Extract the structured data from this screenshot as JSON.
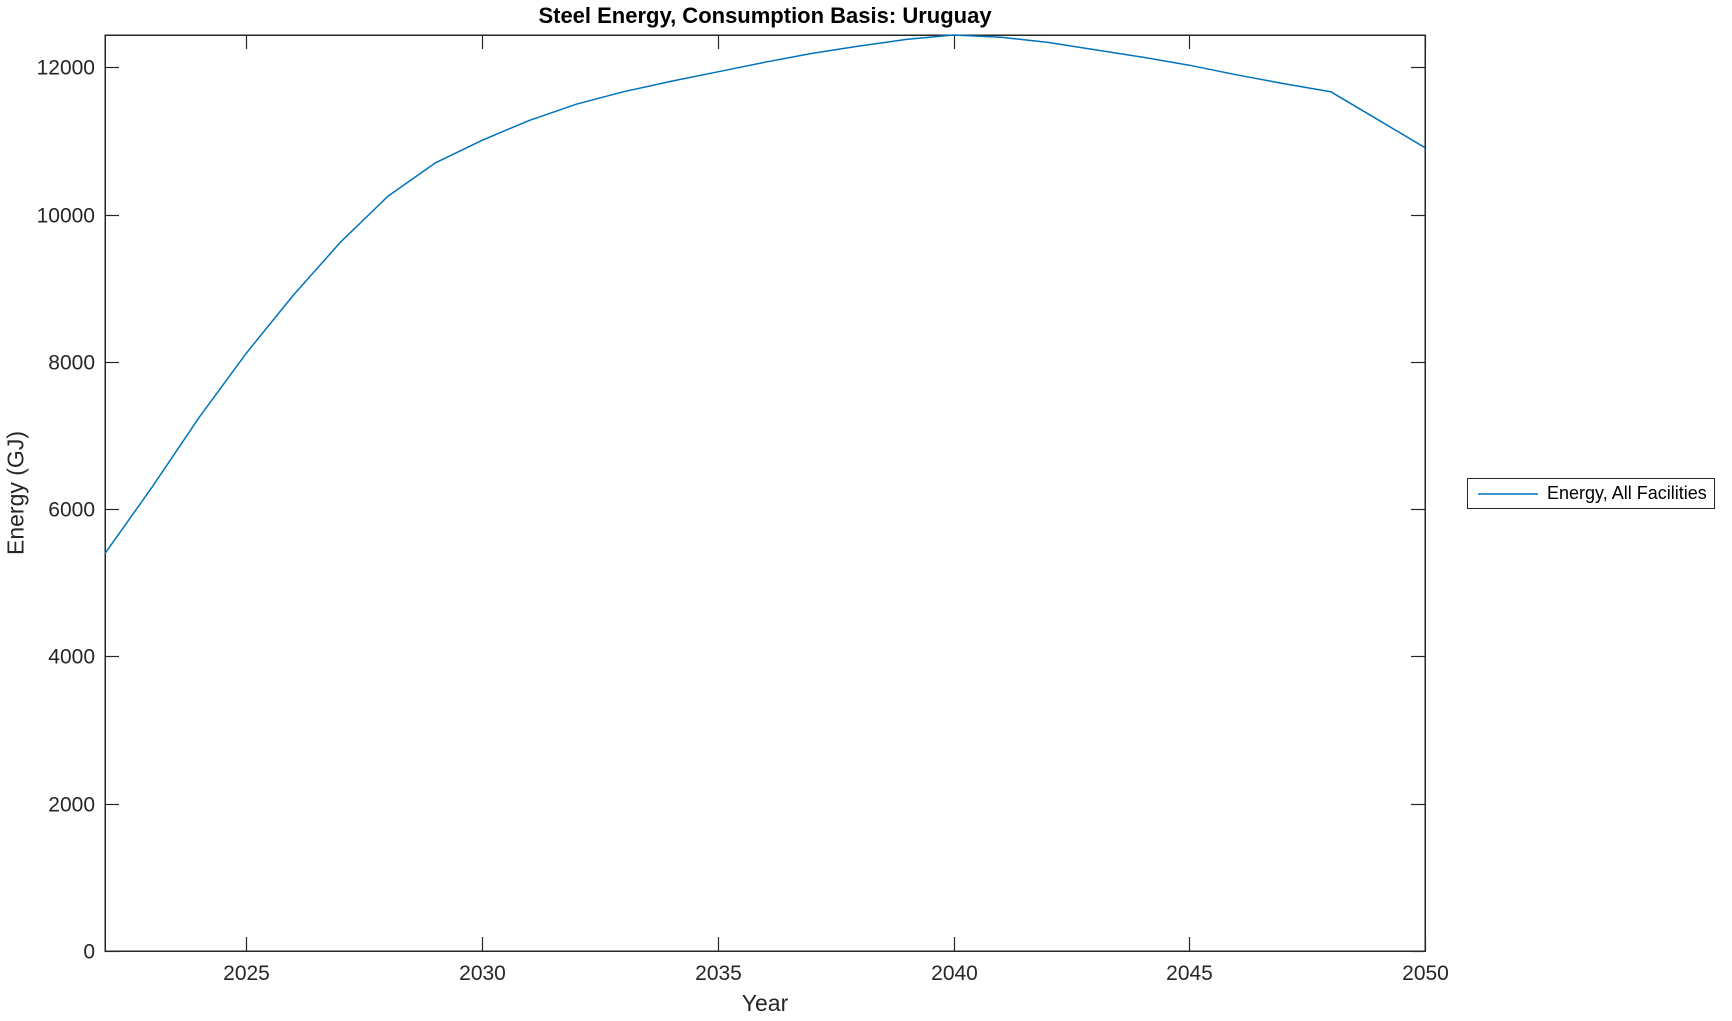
{
  "chart_data": {
    "type": "line",
    "title": "Steel Energy, Consumption Basis: Uruguay",
    "xlabel": "Year",
    "ylabel": "Energy (GJ)",
    "xlim": [
      2022,
      2050
    ],
    "ylim": [
      0,
      12440
    ],
    "x_ticks": [
      2025,
      2030,
      2035,
      2040,
      2045,
      2050
    ],
    "y_ticks": [
      0,
      2000,
      4000,
      6000,
      8000,
      10000,
      12000
    ],
    "grid": false,
    "box": true,
    "tick_direction": "in",
    "legend": {
      "position": "right-outside",
      "entries": [
        "Energy, All Facilities"
      ]
    },
    "series": [
      {
        "name": "Energy, All Facilities",
        "color": "#0072BD",
        "x": [
          2022,
          2023,
          2024,
          2025,
          2026,
          2027,
          2028,
          2029,
          2030,
          2031,
          2032,
          2033,
          2034,
          2035,
          2036,
          2037,
          2038,
          2039,
          2040,
          2041,
          2042,
          2043,
          2044,
          2045,
          2046,
          2047,
          2048,
          2049,
          2050
        ],
        "values": [
          5400,
          6300,
          7250,
          8120,
          8910,
          9630,
          10250,
          10700,
          11010,
          11280,
          11500,
          11670,
          11810,
          11940,
          12070,
          12190,
          12290,
          12380,
          12440,
          12410,
          12340,
          12240,
          12140,
          12030,
          11900,
          11780,
          11670,
          11290,
          10910
        ]
      }
    ]
  },
  "styles": {
    "axis_color": "#262626",
    "title_color": "#000000",
    "background": "#ffffff"
  }
}
